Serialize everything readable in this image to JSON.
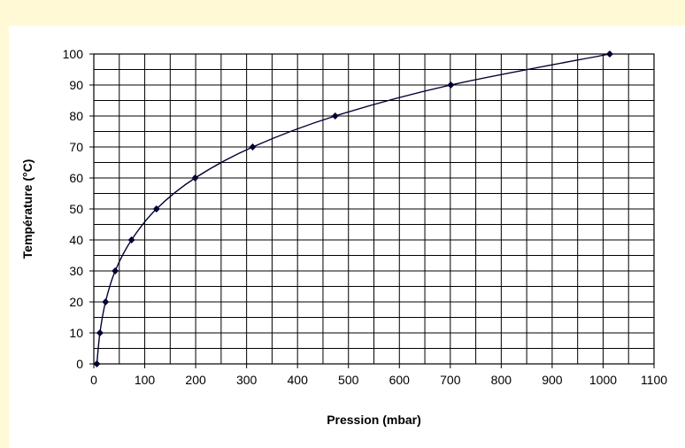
{
  "chart_data": {
    "type": "line",
    "title": "",
    "xlabel": "Pression (mbar)",
    "ylabel": "Température (°C)",
    "xlim": [
      0,
      1100
    ],
    "ylim": [
      0,
      100
    ],
    "x_ticks": [
      0,
      100,
      200,
      300,
      400,
      500,
      600,
      700,
      800,
      900,
      1000,
      1100
    ],
    "y_ticks": [
      0,
      10,
      20,
      30,
      40,
      50,
      60,
      70,
      80,
      90,
      100
    ],
    "grid": true,
    "legend": "none",
    "series": [
      {
        "x": [
          6,
          12,
          23,
          42,
          74,
          123,
          199,
          312,
          474,
          701,
          1013
        ],
        "y": [
          0,
          10,
          20,
          30,
          40,
          50,
          60,
          70,
          80,
          90,
          100
        ],
        "marker": "diamond",
        "color": "#000033"
      }
    ]
  },
  "colors": {
    "page_background": "#fff9d6",
    "plot_background": "#ffffff",
    "grid_line": "#000000",
    "series_line": "#000033"
  }
}
